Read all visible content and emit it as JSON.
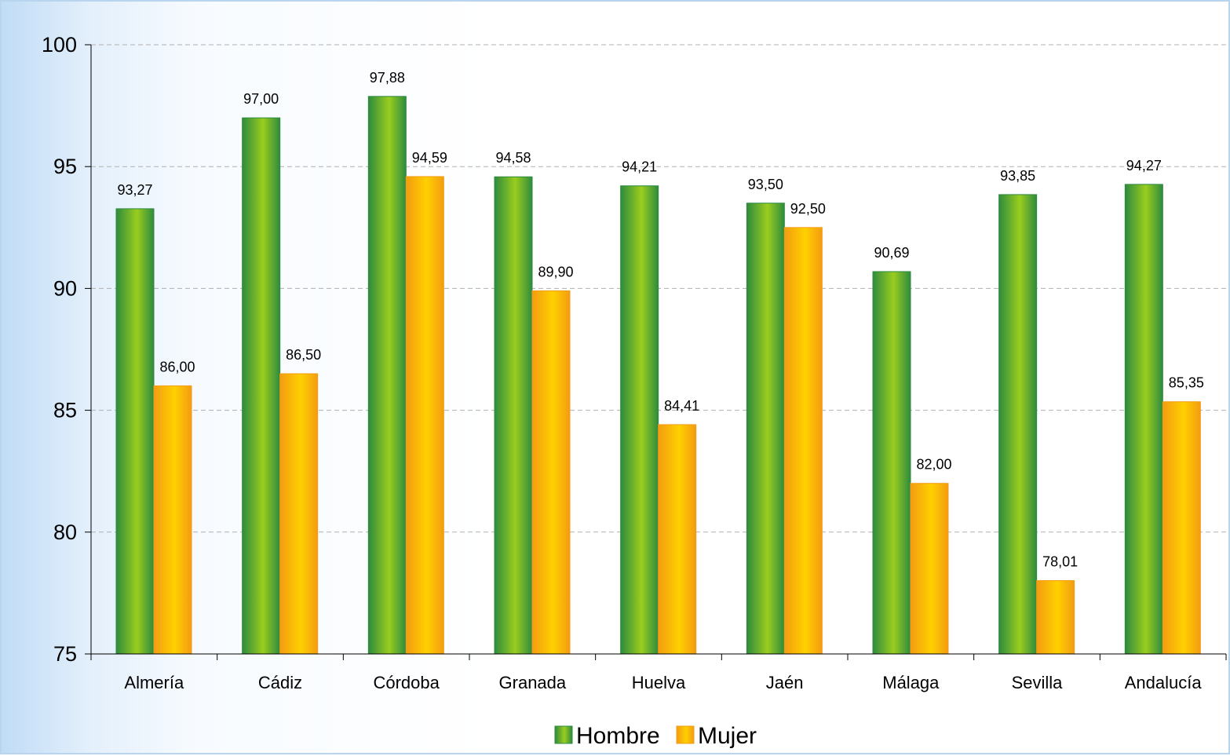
{
  "chart_data": {
    "type": "bar",
    "title": "",
    "xlabel": "",
    "ylabel": "",
    "categories": [
      "Almería",
      "Cádiz",
      "Córdoba",
      "Granada",
      "Huelva",
      "Jaén",
      "Málaga",
      "Sevilla",
      "Andalucía"
    ],
    "series": [
      {
        "name": "Hombre",
        "values": [
          93.27,
          97.0,
          97.88,
          94.58,
          94.21,
          93.5,
          90.69,
          93.85,
          94.27
        ],
        "labels": [
          "93,27",
          "97,00",
          "97,88",
          "94,58",
          "94,21",
          "93,50",
          "90,69",
          "93,85",
          "94,27"
        ],
        "color_dark": "#2e8b3e",
        "color_light": "#9acd1e"
      },
      {
        "name": "Mujer",
        "values": [
          86.0,
          86.5,
          94.59,
          89.9,
          84.41,
          92.5,
          82.0,
          78.01,
          85.35
        ],
        "labels": [
          "86,00",
          "86,50",
          "94,59",
          "89,90",
          "84,41",
          "92,50",
          "82,00",
          "78,01",
          "85,35"
        ],
        "color_dark": "#f39c12",
        "color_light": "#ffd000"
      }
    ],
    "ylim": [
      75,
      100
    ],
    "yticks": [
      75,
      80,
      85,
      90,
      95,
      100
    ],
    "grid": true,
    "legend": "bottom-center"
  }
}
